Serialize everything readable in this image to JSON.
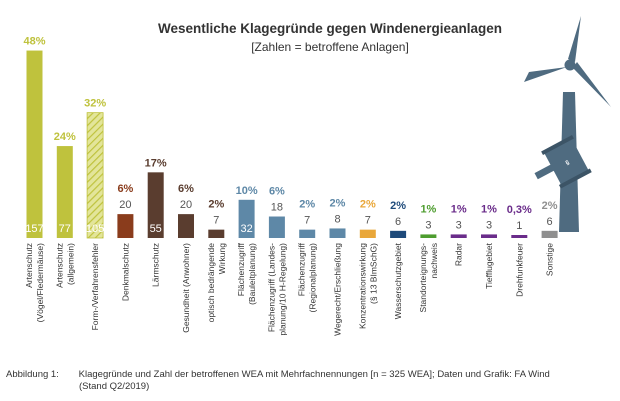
{
  "chart_data": {
    "type": "bar",
    "title": "Wesentliche Klagegründe gegen Windenergieanlagen",
    "subtitle": "[Zahlen = betroffene Anlagen]",
    "categories": [
      [
        "Artenschutz",
        "(Vögel/Fledermäuse)"
      ],
      [
        "Artenschutz",
        "(allgemein)"
      ],
      [
        "Form-/Verfahrensfehler"
      ],
      [
        "Denkmalschutz"
      ],
      [
        "Lärmschutz"
      ],
      [
        "Gesundheit (Anwohner)"
      ],
      [
        "optisch bedrängende",
        "Wirkung"
      ],
      [
        "Flächenzugriff",
        "(Bauleitplanung)"
      ],
      [
        "Flächenzugriff (Landes-",
        "planung/10 H-Regelung)"
      ],
      [
        "Flächenzugriff",
        "(Regionalplanung)"
      ],
      [
        "Wegerecht/Erschließung"
      ],
      [
        "Konzentrationswirkung",
        "(§ 13 BImSchG)"
      ],
      [
        "Wasserschutzgebiet"
      ],
      [
        "Standorteignungs-",
        "nachweis"
      ],
      [
        "Radar"
      ],
      [
        "Tiefflugebiet"
      ],
      [
        "Drehfunkfeuer"
      ],
      [
        "Sonstige"
      ]
    ],
    "values": [
      157,
      77,
      105,
      20,
      55,
      20,
      7,
      32,
      18,
      7,
      8,
      7,
      6,
      3,
      3,
      3,
      1,
      6
    ],
    "percent_labels": [
      "48%",
      "24%",
      "32%",
      "6%",
      "17%",
      "6%",
      "2%",
      "10%",
      "6%",
      "2%",
      "2%",
      "2%",
      "2%",
      "1%",
      "1%",
      "1%",
      "0,3%",
      "2%"
    ],
    "value_labels": [
      "157",
      "77",
      "105",
      "20",
      "55",
      "20",
      "7",
      "32",
      "18",
      "7",
      "8",
      "7",
      "6",
      "3",
      "3",
      "3",
      "1",
      "6"
    ],
    "colors": [
      "#bfc23d",
      "#bfc23d",
      "#bfc23d",
      "#8a3c1c",
      "#5a3d2f",
      "#5a3d2f",
      "#5a3d2f",
      "#5e88a7",
      "#5e88a7",
      "#5e88a7",
      "#5e88a7",
      "#e9a73a",
      "#1e4a7a",
      "#4e9d2f",
      "#6a2c8a",
      "#6a2c8a",
      "#6a2c8a",
      "#8f8f8f"
    ],
    "hatched": [
      false,
      false,
      true,
      false,
      false,
      false,
      false,
      false,
      false,
      false,
      false,
      false,
      false,
      false,
      false,
      false,
      false,
      false
    ],
    "ylim": [
      0,
      165
    ],
    "grid": false,
    "legend": "none"
  },
  "caption": {
    "prefix": "Abbildung 1:",
    "line1": "Klagegründe und Zahl der betroffenen WEA mit Mehrfachnennungen [n = 325 WEA]; Daten und Grafik: FA Wind",
    "line2": "(Stand Q2/2019)"
  },
  "icons": {
    "illustration": "wind-turbine-with-gavel-icon"
  }
}
